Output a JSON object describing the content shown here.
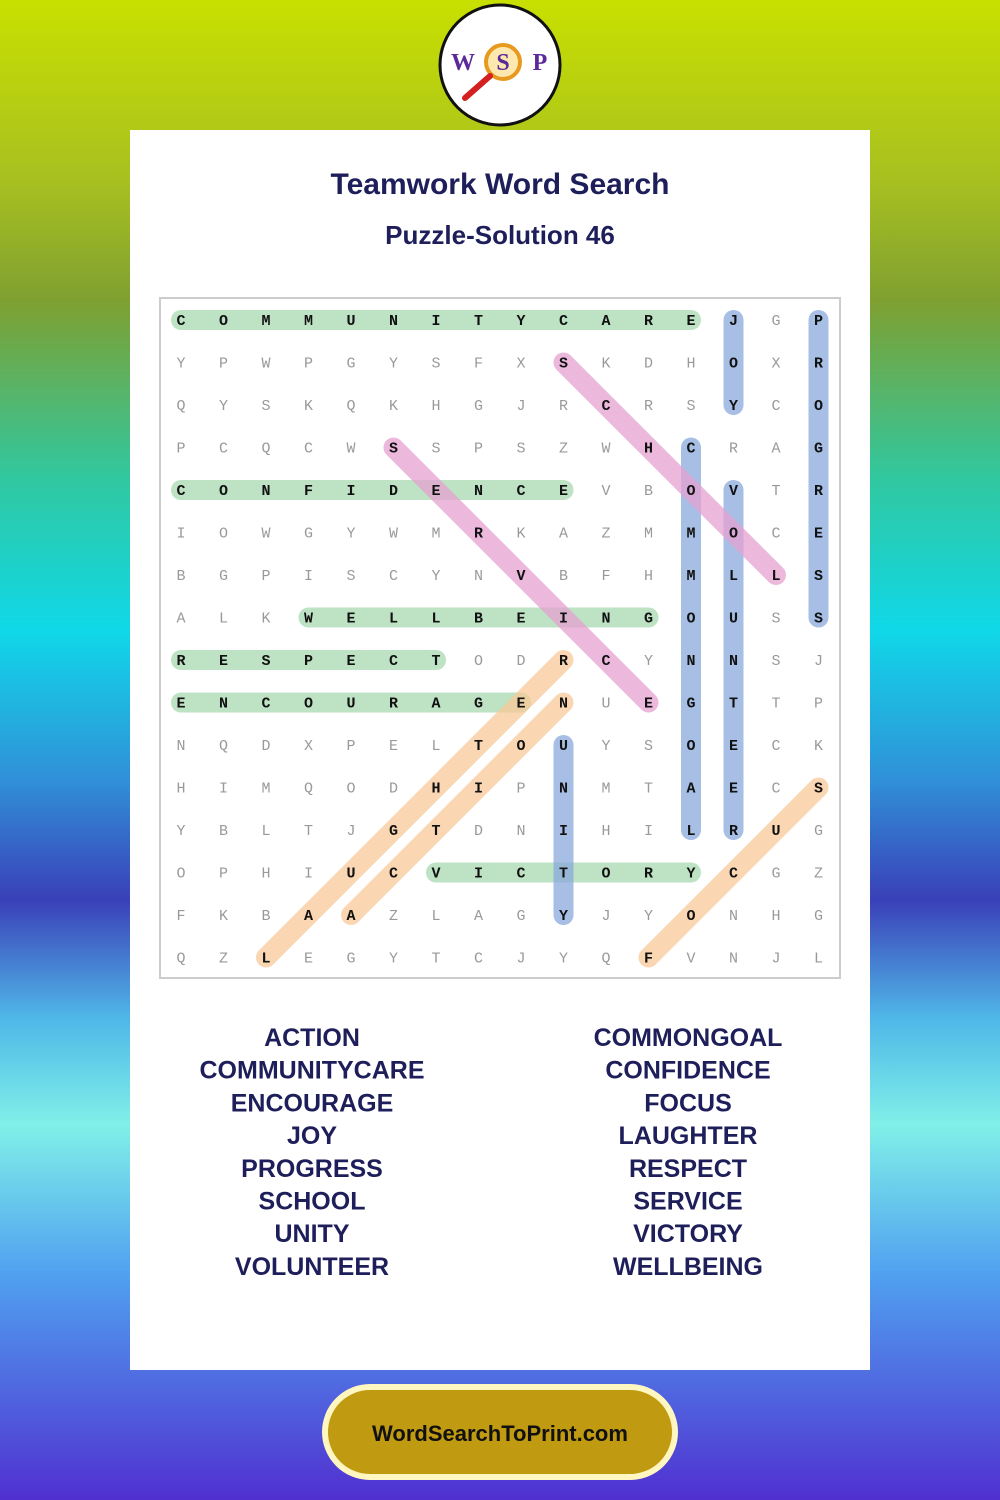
{
  "logo": {
    "letters": [
      "W",
      "S",
      "P"
    ]
  },
  "header": {
    "title": "Teamwork Word Search",
    "subtitle": "Puzzle-Solution 46"
  },
  "grid": {
    "rows": [
      [
        "C",
        "O",
        "M",
        "M",
        "U",
        "N",
        "I",
        "T",
        "Y",
        "C",
        "A",
        "R",
        "E",
        "J",
        "G",
        "P"
      ],
      [
        "Y",
        "P",
        "W",
        "P",
        "G",
        "Y",
        "S",
        "F",
        "X",
        "S",
        "K",
        "D",
        "H",
        "O",
        "X",
        "R"
      ],
      [
        "Q",
        "Y",
        "S",
        "K",
        "Q",
        "K",
        "H",
        "G",
        "J",
        "R",
        "C",
        "R",
        "S",
        "Y",
        "C",
        "O"
      ],
      [
        "P",
        "C",
        "Q",
        "C",
        "W",
        "S",
        "S",
        "P",
        "S",
        "Z",
        "W",
        "H",
        "C",
        "R",
        "A",
        "G"
      ],
      [
        "C",
        "O",
        "N",
        "F",
        "I",
        "D",
        "E",
        "N",
        "C",
        "E",
        "V",
        "B",
        "O",
        "V",
        "T",
        "R"
      ],
      [
        "I",
        "O",
        "W",
        "G",
        "Y",
        "W",
        "M",
        "R",
        "K",
        "A",
        "Z",
        "M",
        "M",
        "O",
        "C",
        "E"
      ],
      [
        "B",
        "G",
        "P",
        "I",
        "S",
        "C",
        "Y",
        "N",
        "V",
        "B",
        "F",
        "H",
        "M",
        "L",
        "L",
        "S"
      ],
      [
        "A",
        "L",
        "K",
        "W",
        "E",
        "L",
        "L",
        "B",
        "E",
        "I",
        "N",
        "G",
        "O",
        "U",
        "S",
        "S"
      ],
      [
        "R",
        "E",
        "S",
        "P",
        "E",
        "C",
        "T",
        "O",
        "D",
        "R",
        "C",
        "Y",
        "N",
        "N",
        "S",
        "J"
      ],
      [
        "E",
        "N",
        "C",
        "O",
        "U",
        "R",
        "A",
        "G",
        "E",
        "N",
        "U",
        "E",
        "G",
        "T",
        "T",
        "P"
      ],
      [
        "N",
        "Q",
        "D",
        "X",
        "P",
        "E",
        "L",
        "T",
        "O",
        "U",
        "Y",
        "S",
        "O",
        "E",
        "C",
        "K"
      ],
      [
        "H",
        "I",
        "M",
        "Q",
        "O",
        "D",
        "H",
        "I",
        "P",
        "N",
        "M",
        "T",
        "A",
        "E",
        "C",
        "S"
      ],
      [
        "Y",
        "B",
        "L",
        "T",
        "J",
        "G",
        "T",
        "D",
        "N",
        "I",
        "H",
        "I",
        "L",
        "R",
        "U",
        "G"
      ],
      [
        "O",
        "P",
        "H",
        "I",
        "U",
        "C",
        "V",
        "I",
        "C",
        "T",
        "O",
        "R",
        "Y",
        "C",
        "G",
        "Z"
      ],
      [
        "F",
        "K",
        "B",
        "A",
        "A",
        "Z",
        "L",
        "A",
        "G",
        "Y",
        "J",
        "Y",
        "O",
        "N",
        "H",
        "G"
      ],
      [
        "Q",
        "Z",
        "L",
        "E",
        "G",
        "Y",
        "T",
        "C",
        "J",
        "Y",
        "Q",
        "F",
        "V",
        "N",
        "J",
        "L"
      ]
    ]
  },
  "words": {
    "left": [
      "ACTION",
      "COMMUNITYCARE",
      "ENCOURAGE",
      "JOY",
      "PROGRESS",
      "SCHOOL",
      "UNITY",
      "VOLUNTEER"
    ],
    "right": [
      "COMMONGOAL",
      "CONFIDENCE",
      "FOCUS",
      "LAUGHTER",
      "RESPECT",
      "SERVICE",
      "VICTORY",
      "WELLBEING"
    ]
  },
  "footer": {
    "site": "WordSearchToPrint.com"
  }
}
